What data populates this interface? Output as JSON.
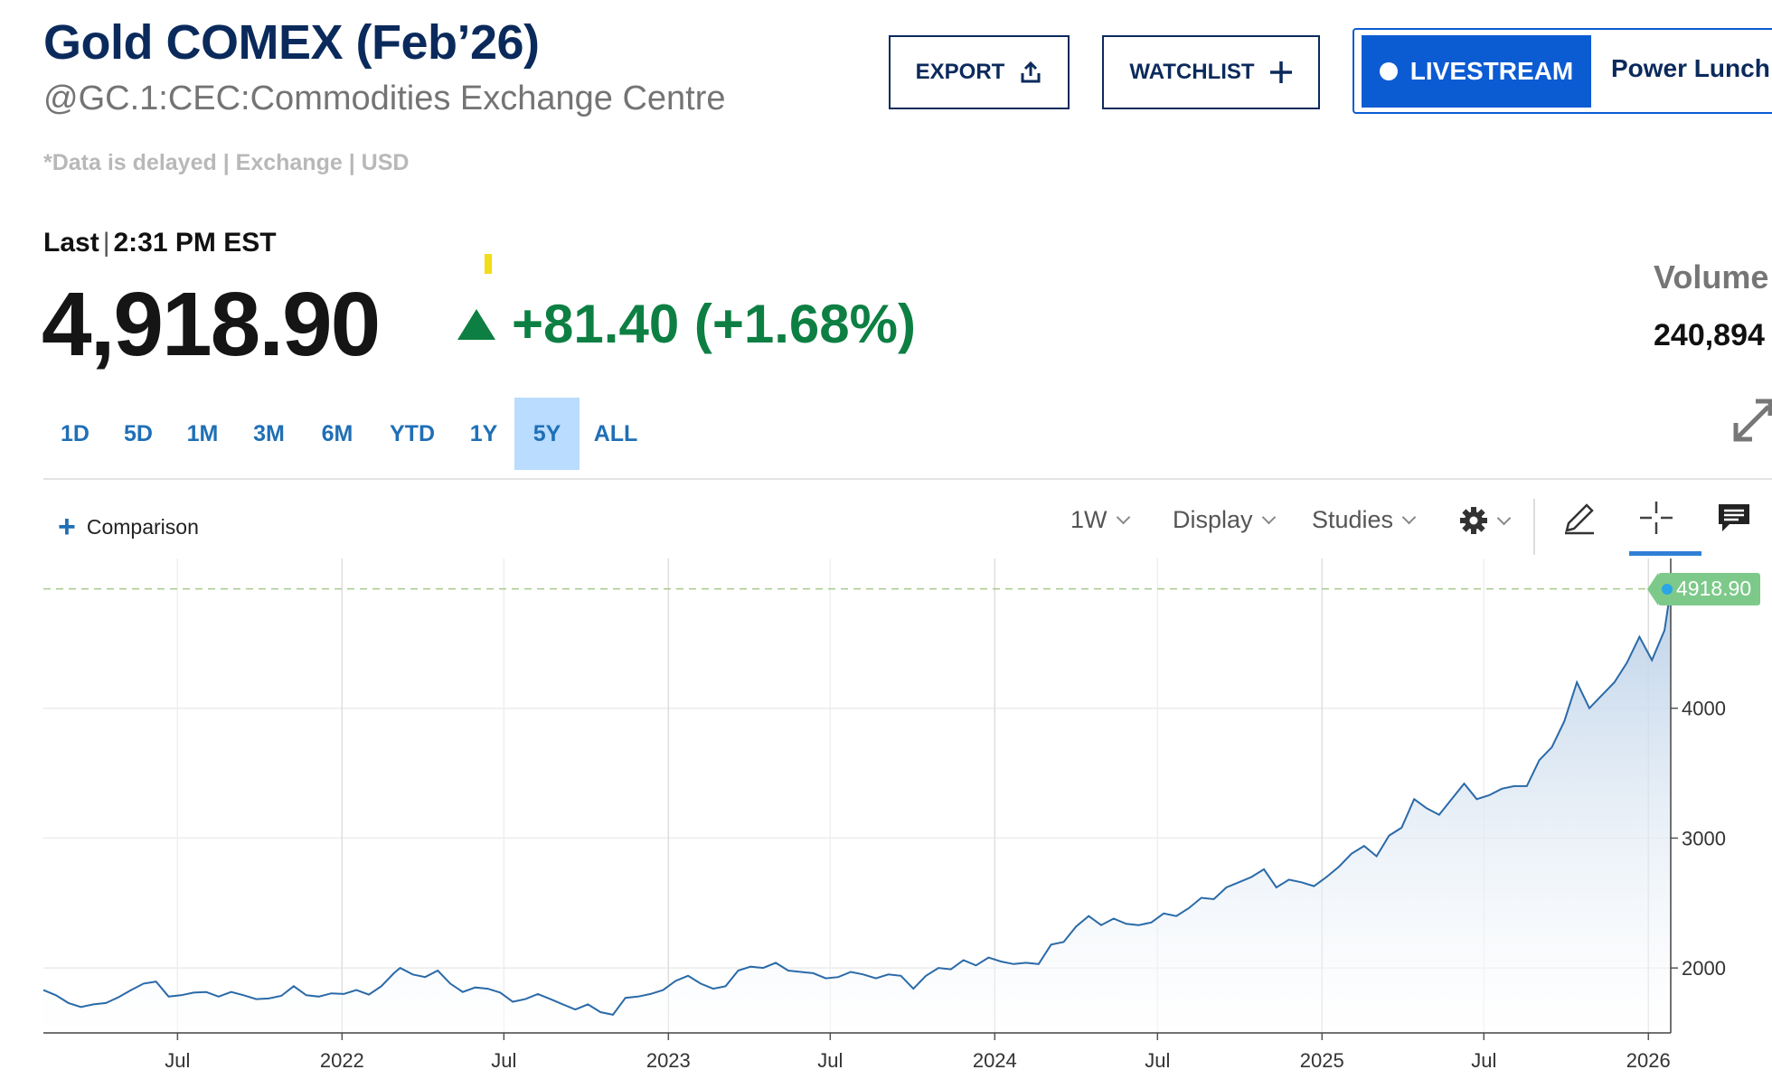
{
  "header": {
    "title": "Gold COMEX (Feb’26)",
    "symbol_line": "@GC.1:CEC:Commodities Exchange Centre",
    "delay_note": "*Data is delayed | Exchange | USD"
  },
  "actions": {
    "export_label": "EXPORT",
    "watchlist_label": "WATCHLIST",
    "livestream_label": "LIVESTREAM",
    "live_show": "Power Lunch"
  },
  "quote": {
    "last_label": "Last",
    "separator": "|",
    "time": "2:31 PM EST",
    "price": "4,918.90",
    "change": "+81.40 (+1.68%)",
    "volume_label": "Volume",
    "volume_value": "240,894"
  },
  "ranges": {
    "items": [
      "1D",
      "5D",
      "1M",
      "3M",
      "6M",
      "YTD",
      "1Y",
      "5Y",
      "ALL"
    ],
    "selected": "5Y"
  },
  "toolbar": {
    "comparison_label": "Comparison",
    "interval_label": "1W",
    "display_label": "Display",
    "studies_label": "Studies"
  },
  "colors": {
    "brand_navy": "#0b2a5c",
    "accent_blue": "#0b5bd3",
    "positive_green": "#0d7f43",
    "range_blue": "#1f6fb6",
    "range_active_bg": "#b9dcff",
    "line": "#2a6aa8",
    "area_top": "#bcd1e8",
    "last_price_tag": "#7dc98a"
  },
  "icons": [
    "share-icon",
    "plus-icon",
    "live-dot-icon",
    "up-triangle-icon",
    "expand-icon",
    "gear-icon",
    "pencil-icon",
    "crosshair-icon",
    "comment-icon"
  ],
  "chart_data": {
    "type": "area",
    "x_start": "2021-02-01",
    "x_end": "2026-01-26",
    "x_ticks": [
      {
        "date": "2021-07-01",
        "label": "Jul"
      },
      {
        "date": "2022-01-01",
        "label": "2022"
      },
      {
        "date": "2022-07-01",
        "label": "Jul"
      },
      {
        "date": "2023-01-01",
        "label": "2023"
      },
      {
        "date": "2023-07-01",
        "label": "Jul"
      },
      {
        "date": "2024-01-01",
        "label": "2024"
      },
      {
        "date": "2024-07-01",
        "label": "Jul"
      },
      {
        "date": "2025-01-01",
        "label": "2025"
      },
      {
        "date": "2025-07-01",
        "label": "Jul"
      },
      {
        "date": "2026-01-01",
        "label": "2026"
      }
    ],
    "y_ticks": [
      2000,
      3000,
      4000
    ],
    "ylim": [
      1500,
      5000
    ],
    "last_value": 4918.9,
    "last_value_label": "4918.90",
    "grid": true,
    "y_axis_side": "right",
    "series": [
      {
        "values": [
          [
            "2021-02-01",
            1830
          ],
          [
            "2021-02-15",
            1790
          ],
          [
            "2021-03-01",
            1730
          ],
          [
            "2021-03-15",
            1700
          ],
          [
            "2021-03-29",
            1720
          ],
          [
            "2021-04-12",
            1730
          ],
          [
            "2021-04-26",
            1775
          ],
          [
            "2021-05-10",
            1830
          ],
          [
            "2021-05-24",
            1880
          ],
          [
            "2021-06-07",
            1895
          ],
          [
            "2021-06-21",
            1780
          ],
          [
            "2021-07-05",
            1790
          ],
          [
            "2021-07-19",
            1810
          ],
          [
            "2021-08-02",
            1815
          ],
          [
            "2021-08-16",
            1780
          ],
          [
            "2021-08-30",
            1815
          ],
          [
            "2021-09-13",
            1790
          ],
          [
            "2021-09-27",
            1760
          ],
          [
            "2021-10-11",
            1765
          ],
          [
            "2021-10-25",
            1785
          ],
          [
            "2021-11-08",
            1860
          ],
          [
            "2021-11-22",
            1790
          ],
          [
            "2021-12-06",
            1780
          ],
          [
            "2021-12-20",
            1805
          ],
          [
            "2022-01-03",
            1800
          ],
          [
            "2022-01-17",
            1830
          ],
          [
            "2022-01-31",
            1795
          ],
          [
            "2022-02-14",
            1860
          ],
          [
            "2022-02-28",
            1960
          ],
          [
            "2022-03-07",
            2000
          ],
          [
            "2022-03-21",
            1950
          ],
          [
            "2022-04-04",
            1930
          ],
          [
            "2022-04-18",
            1980
          ],
          [
            "2022-05-02",
            1880
          ],
          [
            "2022-05-16",
            1815
          ],
          [
            "2022-05-30",
            1850
          ],
          [
            "2022-06-13",
            1840
          ],
          [
            "2022-06-27",
            1810
          ],
          [
            "2022-07-11",
            1740
          ],
          [
            "2022-07-25",
            1760
          ],
          [
            "2022-08-08",
            1800
          ],
          [
            "2022-08-22",
            1760
          ],
          [
            "2022-09-05",
            1720
          ],
          [
            "2022-09-19",
            1680
          ],
          [
            "2022-10-03",
            1720
          ],
          [
            "2022-10-17",
            1660
          ],
          [
            "2022-10-31",
            1640
          ],
          [
            "2022-11-14",
            1770
          ],
          [
            "2022-11-28",
            1780
          ],
          [
            "2022-12-12",
            1800
          ],
          [
            "2022-12-26",
            1830
          ],
          [
            "2023-01-09",
            1900
          ],
          [
            "2023-01-23",
            1940
          ],
          [
            "2023-02-06",
            1880
          ],
          [
            "2023-02-20",
            1840
          ],
          [
            "2023-03-06",
            1860
          ],
          [
            "2023-03-20",
            1980
          ],
          [
            "2023-04-03",
            2010
          ],
          [
            "2023-04-17",
            2000
          ],
          [
            "2023-05-01",
            2040
          ],
          [
            "2023-05-15",
            1980
          ],
          [
            "2023-05-29",
            1970
          ],
          [
            "2023-06-12",
            1960
          ],
          [
            "2023-06-26",
            1920
          ],
          [
            "2023-07-10",
            1930
          ],
          [
            "2023-07-24",
            1970
          ],
          [
            "2023-08-07",
            1950
          ],
          [
            "2023-08-21",
            1920
          ],
          [
            "2023-09-04",
            1950
          ],
          [
            "2023-09-18",
            1940
          ],
          [
            "2023-10-02",
            1840
          ],
          [
            "2023-10-16",
            1940
          ],
          [
            "2023-10-30",
            2000
          ],
          [
            "2023-11-13",
            1990
          ],
          [
            "2023-11-27",
            2060
          ],
          [
            "2023-12-11",
            2020
          ],
          [
            "2023-12-25",
            2080
          ],
          [
            "2024-01-08",
            2050
          ],
          [
            "2024-01-22",
            2030
          ],
          [
            "2024-02-05",
            2040
          ],
          [
            "2024-02-19",
            2030
          ],
          [
            "2024-03-04",
            2180
          ],
          [
            "2024-03-18",
            2200
          ],
          [
            "2024-04-01",
            2320
          ],
          [
            "2024-04-15",
            2400
          ],
          [
            "2024-04-29",
            2330
          ],
          [
            "2024-05-13",
            2380
          ],
          [
            "2024-05-27",
            2340
          ],
          [
            "2024-06-10",
            2330
          ],
          [
            "2024-06-24",
            2350
          ],
          [
            "2024-07-08",
            2420
          ],
          [
            "2024-07-22",
            2400
          ],
          [
            "2024-08-05",
            2460
          ],
          [
            "2024-08-19",
            2540
          ],
          [
            "2024-09-02",
            2530
          ],
          [
            "2024-09-16",
            2620
          ],
          [
            "2024-09-30",
            2660
          ],
          [
            "2024-10-14",
            2700
          ],
          [
            "2024-10-28",
            2760
          ],
          [
            "2024-11-11",
            2620
          ],
          [
            "2024-11-25",
            2680
          ],
          [
            "2024-12-09",
            2660
          ],
          [
            "2024-12-23",
            2630
          ],
          [
            "2025-01-06",
            2700
          ],
          [
            "2025-01-20",
            2780
          ],
          [
            "2025-02-03",
            2880
          ],
          [
            "2025-02-17",
            2940
          ],
          [
            "2025-03-03",
            2860
          ],
          [
            "2025-03-17",
            3020
          ],
          [
            "2025-03-31",
            3080
          ],
          [
            "2025-04-14",
            3300
          ],
          [
            "2025-04-28",
            3230
          ],
          [
            "2025-05-12",
            3180
          ],
          [
            "2025-05-26",
            3300
          ],
          [
            "2025-06-09",
            3420
          ],
          [
            "2025-06-23",
            3300
          ],
          [
            "2025-07-07",
            3330
          ],
          [
            "2025-07-21",
            3380
          ],
          [
            "2025-08-04",
            3400
          ],
          [
            "2025-08-18",
            3400
          ],
          [
            "2025-09-01",
            3600
          ],
          [
            "2025-09-15",
            3700
          ],
          [
            "2025-09-29",
            3900
          ],
          [
            "2025-10-13",
            4200
          ],
          [
            "2025-10-27",
            4000
          ],
          [
            "2025-11-10",
            4100
          ],
          [
            "2025-11-24",
            4200
          ],
          [
            "2025-12-08",
            4350
          ],
          [
            "2025-12-22",
            4550
          ],
          [
            "2026-01-05",
            4370
          ],
          [
            "2026-01-19",
            4600
          ],
          [
            "2026-01-26",
            4918.9
          ]
        ]
      }
    ]
  }
}
